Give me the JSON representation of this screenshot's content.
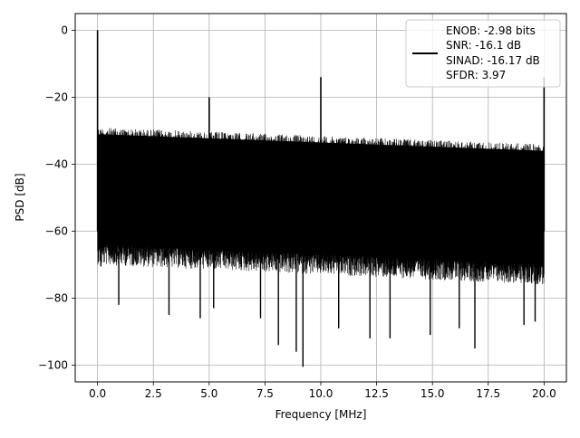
{
  "chart_data": {
    "type": "line",
    "title": "",
    "xlabel": "Frequency [MHz]",
    "ylabel": "PSD [dB]",
    "xlim": [
      -1.0,
      21.0
    ],
    "ylim": [
      -105.0,
      5.0
    ],
    "xticks": [
      0.0,
      2.5,
      5.0,
      7.5,
      10.0,
      12.5,
      15.0,
      17.5,
      20.0
    ],
    "xtick_labels": [
      "0.0",
      "2.5",
      "5.0",
      "7.5",
      "10.0",
      "12.5",
      "15.0",
      "17.5",
      "20.0"
    ],
    "yticks": [
      0,
      -20,
      -40,
      -60,
      -80,
      -100
    ],
    "ytick_labels": [
      "0",
      "−20",
      "−40",
      "−60",
      "−80",
      "−100"
    ],
    "grid": true,
    "legend_position": "top-right",
    "legend_lines": [
      "ENOB: -2.98 bits",
      "SNR: -16.1 dB",
      "SINAD: -16.17 dB",
      "SFDR: 3.97"
    ],
    "series": [
      {
        "color": "#000000",
        "noise_floor": {
          "start_upper_db": -29,
          "end_upper_db": -34,
          "start_lower_db": -64,
          "end_lower_db": -70,
          "x_range": [
            0.0,
            20.0
          ]
        },
        "spikes": [
          {
            "x": 0.0,
            "y": 0.0
          },
          {
            "x": 5.0,
            "y": -20.0
          },
          {
            "x": 10.0,
            "y": -14.0
          },
          {
            "x": 20.0,
            "y": -14.0
          }
        ],
        "dips": [
          {
            "x": 0.15,
            "y": -70.5
          },
          {
            "x": 0.95,
            "y": -82.0
          },
          {
            "x": 3.2,
            "y": -85.0
          },
          {
            "x": 4.6,
            "y": -86.0
          },
          {
            "x": 5.2,
            "y": -83.0
          },
          {
            "x": 7.3,
            "y": -86.0
          },
          {
            "x": 8.1,
            "y": -94.0
          },
          {
            "x": 8.9,
            "y": -96.0
          },
          {
            "x": 9.2,
            "y": -100.5
          },
          {
            "x": 10.8,
            "y": -89.0
          },
          {
            "x": 12.2,
            "y": -92.0
          },
          {
            "x": 13.1,
            "y": -92.0
          },
          {
            "x": 14.9,
            "y": -91.0
          },
          {
            "x": 16.2,
            "y": -89.0
          },
          {
            "x": 16.9,
            "y": -95.0
          },
          {
            "x": 19.1,
            "y": -88.0
          },
          {
            "x": 19.6,
            "y": -87.0
          }
        ]
      }
    ]
  }
}
